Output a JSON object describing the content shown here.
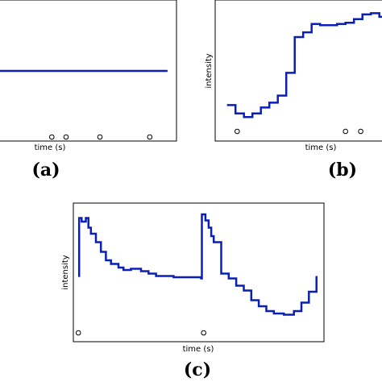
{
  "chart_data": [
    {
      "type": "line",
      "panel_label": "(a)",
      "xlabel": "time (s)",
      "ylabel": "",
      "xlim": [
        0,
        100
      ],
      "ylim": [
        0,
        1
      ],
      "x": [
        0,
        95
      ],
      "values": [
        0.5,
        0.5
      ],
      "event_markers_x": [
        30,
        38,
        57,
        85
      ],
      "line_color": "#0a1fb5",
      "grid": false
    },
    {
      "type": "line",
      "panel_label": "(b)",
      "xlabel": "time (s)",
      "ylabel": "intensity",
      "xlim": [
        0,
        100
      ],
      "ylim": [
        0,
        1
      ],
      "x": [
        7,
        12,
        17,
        22,
        27,
        32,
        37,
        42,
        47,
        52,
        57,
        62,
        67,
        72,
        77,
        82,
        87,
        92,
        97,
        102
      ],
      "values": [
        0.2,
        0.13,
        0.1,
        0.13,
        0.18,
        0.22,
        0.28,
        0.47,
        0.77,
        0.81,
        0.88,
        0.87,
        0.87,
        0.88,
        0.89,
        0.92,
        0.96,
        0.97,
        0.94,
        0.96
      ],
      "event_markers_x": [
        13,
        77,
        86
      ],
      "line_color": "#0a1fb5",
      "grid": false
    },
    {
      "type": "line",
      "panel_label": "(c)",
      "xlabel": "time (s)",
      "ylabel": "intensity",
      "xlim": [
        0,
        100
      ],
      "ylim": [
        0,
        1
      ],
      "x": [
        2,
        2.3,
        3.3,
        5,
        6,
        7,
        9,
        11,
        13,
        15,
        18,
        20,
        23,
        27,
        30,
        33,
        37,
        40,
        43,
        46,
        49,
        51,
        51.3,
        52.7,
        54,
        55,
        56,
        59,
        62,
        65,
        68,
        71,
        74,
        77,
        80,
        84,
        88,
        91,
        94,
        97
      ],
      "values": [
        0.45,
        0.93,
        0.9,
        0.93,
        0.85,
        0.8,
        0.73,
        0.65,
        0.58,
        0.55,
        0.52,
        0.5,
        0.51,
        0.49,
        0.47,
        0.45,
        0.45,
        0.44,
        0.44,
        0.44,
        0.44,
        0.43,
        0.96,
        0.91,
        0.85,
        0.78,
        0.73,
        0.47,
        0.43,
        0.37,
        0.33,
        0.25,
        0.2,
        0.16,
        0.14,
        0.13,
        0.16,
        0.23,
        0.32,
        0.45
      ],
      "event_markers_x": [
        2,
        52
      ],
      "line_color": "#0a1fb5",
      "grid": false
    }
  ]
}
